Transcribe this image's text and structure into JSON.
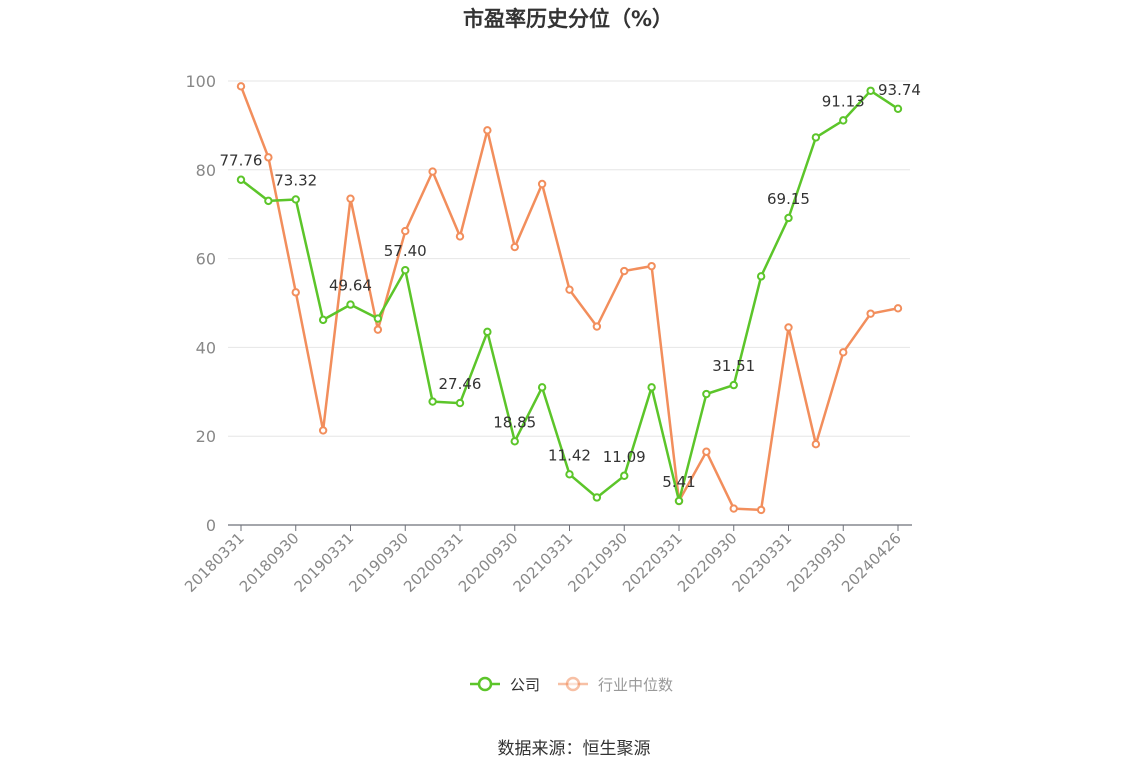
{
  "chart_data": {
    "type": "line",
    "title": "市盈率历史分位（%）",
    "source": "数据来源：恒生聚源",
    "ylim": [
      0,
      100
    ],
    "yticks": [
      0,
      20,
      40,
      60,
      80,
      100
    ],
    "x": [
      "20180331",
      "20180630",
      "20180930",
      "20181231",
      "20190331",
      "20190630",
      "20190930",
      "20191231",
      "20200331",
      "20200630",
      "20200930",
      "20201231",
      "20210331",
      "20210630",
      "20210930",
      "20211231",
      "20220331",
      "20220630",
      "20220930",
      "20221231",
      "20230331",
      "20230630",
      "20230930",
      "20231231",
      "20240426"
    ],
    "xtick_labels": [
      "20180331",
      "20180930",
      "20190331",
      "20190930",
      "20200331",
      "20200930",
      "20210331",
      "20210930",
      "20220331",
      "20220930",
      "20230331",
      "20230930",
      "20240426"
    ],
    "xtick_indices": [
      0,
      2,
      4,
      6,
      8,
      10,
      12,
      14,
      16,
      18,
      20,
      22,
      24
    ],
    "grid": true,
    "legend_position": "bottom",
    "series": [
      {
        "name": "公司",
        "color": "#5cc52a",
        "values": [
          77.76,
          73.0,
          73.32,
          46.2,
          49.64,
          46.5,
          57.4,
          27.8,
          27.46,
          43.5,
          18.85,
          31.0,
          11.42,
          6.2,
          11.09,
          31.0,
          5.41,
          29.5,
          31.51,
          56.0,
          69.15,
          87.3,
          91.13,
          97.8,
          93.74
        ],
        "labels": {
          "0": "77.76",
          "2": "73.32",
          "4": "49.64",
          "6": "57.40",
          "8": "27.46",
          "10": "18.85",
          "12": "11.42",
          "14": "11.09",
          "16": "5.41",
          "18": "31.51",
          "20": "69.15",
          "22": "91.13",
          "24": "93.74"
        }
      },
      {
        "name": "行业中位数",
        "color": "#f28e5c",
        "values": [
          98.8,
          82.8,
          52.4,
          21.3,
          73.5,
          44.0,
          66.2,
          79.6,
          65.0,
          88.9,
          62.6,
          76.8,
          53.0,
          44.7,
          57.2,
          58.3,
          5.4,
          16.5,
          3.7,
          3.4,
          44.5,
          18.2,
          38.9,
          47.6,
          48.8
        ]
      }
    ]
  }
}
